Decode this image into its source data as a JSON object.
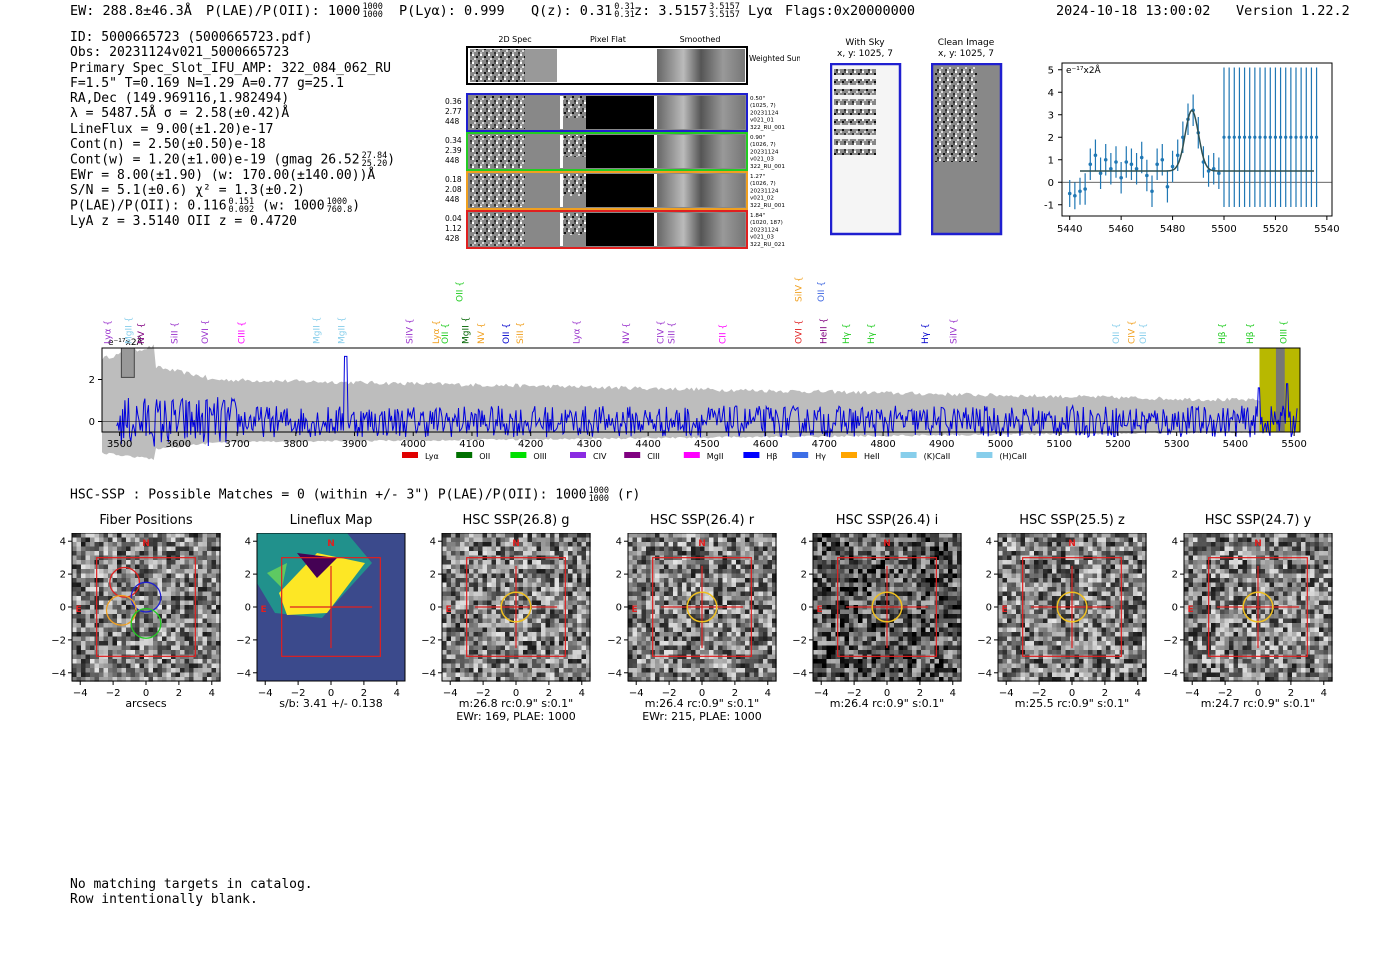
{
  "header": {
    "ew": "EW: 288.8±46.3Å",
    "plae_label": "P(LAE)/P(OII): 1000",
    "plae_hi": "1000",
    "plae_lo": "1000",
    "plya": "P(Lyα): 0.999",
    "qz_label": "Q(z): 0.31",
    "qz_hi": "0.31",
    "qz_lo": "0.31",
    "z_label": "z: 3.5157",
    "z_hi": "3.5157",
    "z_lo": "3.5157",
    "z_line": "Lyα",
    "flags": "Flags:0x20000000",
    "datetime": "2024-10-18 13:00:02",
    "version": "Version 1.22.2"
  },
  "info": {
    "id": "ID: 5000665723 (5000665723.pdf)",
    "obs": "Obs: 20231124v021_5000665723",
    "slot": "Primary Spec_Slot_IFU_AMP: 322_084_062_RU",
    "fit": "F=1.5\"  T=0.169  N=1.29  A=0.77  g=25.1",
    "radec": "RA,Dec (149.969116,1.982494)",
    "lambda": "λ = 5487.5Å   σ = 2.58(±0.42)Å",
    "lineflux": "LineFlux = 9.00(±1.20)e-17",
    "contn": "Cont(n) = 2.50(±0.50)e-18",
    "contw": "Cont(w) = 1.20(±1.00)e-19 (gmag 26.52",
    "contw_hi": "27.84",
    "contw_lo": "25.20",
    "contw_end": ")",
    "ewr": "EWr = 8.00(±1.90) (w: 170.00(±140.00))Å",
    "sn": "S/N = 5.1(±0.6)  χ² = 1.3(±0.2)",
    "plae": "P(LAE)/P(OII): 0.116",
    "plae_hi": "0.151",
    "plae_lo": "0.092",
    "plae_w": "(w: 1000",
    "plae_w_hi": "1000",
    "plae_w_lo": "760.8",
    "plae_end": ")",
    "lyaz": "LyA z = 3.5140   OII z = 0.4720"
  },
  "stamps": {
    "col_titles": [
      "2D Spec",
      "Pixel Flat",
      "Smoothed"
    ],
    "weighted": "Weighted Sum",
    "rows": [
      {
        "left": [
          "0.36",
          "2.77",
          "448"
        ],
        "right": [
          "0.50\"",
          "(1025, 7)",
          "20231124",
          "v021_01",
          "322_RU_001"
        ],
        "color": "#1f1fd0"
      },
      {
        "left": [
          "0.34",
          "2.39",
          "448"
        ],
        "right": [
          "0.90\"",
          "(1026, 7)",
          "20231124",
          "v021_03",
          "322_RU_001"
        ],
        "color": "#22cc22"
      },
      {
        "left": [
          "0.18",
          "2.08",
          "448"
        ],
        "right": [
          "1.27\"",
          "(1026, 7)",
          "20231124",
          "v021_02",
          "322_RU_001"
        ],
        "color": "#f0a020"
      },
      {
        "left": [
          "0.04",
          "1.12",
          "428"
        ],
        "right": [
          "1.84\"",
          "(1020, 187)",
          "20231124",
          "v021_03",
          "322_RU_021"
        ],
        "color": "#e02020"
      }
    ]
  },
  "sky": {
    "title": "With Sky",
    "sub": "x, y: 1025, 7"
  },
  "clean": {
    "title": "Clean Image",
    "sub": "x, y: 1025, 7"
  },
  "zoom_chart": {
    "unit": "e⁻¹⁷x2Å",
    "xticks": [
      5440,
      5460,
      5480,
      5500,
      5520,
      5540
    ],
    "yticks": [
      -1,
      0,
      1,
      2,
      3,
      4,
      5
    ]
  },
  "chart_data": [
    {
      "type": "scatter",
      "title": "",
      "xlabel": "",
      "ylabel": "e⁻¹⁷x2Å",
      "xlim": [
        5437,
        5542
      ],
      "ylim": [
        -1.5,
        5.3
      ],
      "x": [
        5440,
        5442,
        5444,
        5446,
        5448,
        5450,
        5452,
        5454,
        5456,
        5458,
        5460,
        5462,
        5464,
        5466,
        5468,
        5470,
        5472,
        5474,
        5476,
        5478,
        5480,
        5482,
        5484,
        5486,
        5488,
        5490,
        5492,
        5494,
        5496,
        5498
      ],
      "y": [
        -0.5,
        -0.6,
        -0.4,
        -0.3,
        0.8,
        1.2,
        0.4,
        1.0,
        0.6,
        0.9,
        0.2,
        0.9,
        0.8,
        0.6,
        1.1,
        0.3,
        -0.4,
        0.8,
        1.0,
        -0.2,
        0.7,
        1.2,
        2.0,
        2.8,
        3.2,
        2.2,
        0.9,
        0.5,
        0.6,
        0.4
      ],
      "yerr": [
        0.6,
        0.6,
        0.6,
        0.7,
        0.7,
        0.7,
        0.7,
        0.7,
        0.7,
        0.7,
        0.7,
        0.7,
        0.7,
        0.7,
        0.7,
        0.7,
        0.7,
        0.7,
        0.7,
        0.7,
        0.7,
        0.7,
        0.7,
        0.7,
        0.7,
        0.7,
        0.7,
        0.7,
        0.7,
        0.7
      ],
      "flat_x": [
        5500,
        5502,
        5504,
        5506,
        5508,
        5510,
        5512,
        5514,
        5516,
        5518,
        5520,
        5522,
        5524,
        5526,
        5528,
        5530,
        5532,
        5534,
        5536
      ],
      "flat_y": 2.0,
      "flat_err": 3.1,
      "model": {
        "center": 5487.5,
        "sigma": 2.58,
        "peak": 3.2,
        "baseline": 0.5,
        "xrange": [
          5444,
          5535
        ]
      }
    },
    {
      "type": "line",
      "title": "",
      "xlabel": "",
      "ylabel": "e⁻¹⁷x2Å",
      "xlim": [
        3470,
        5510
      ],
      "ylim": [
        -0.5,
        3.5
      ],
      "xticks": [
        3500,
        3600,
        3700,
        3800,
        3900,
        4000,
        4100,
        4200,
        4300,
        4400,
        4500,
        4600,
        4700,
        4800,
        4900,
        5000,
        5100,
        5200,
        5300,
        5400,
        5500
      ],
      "yticks": [
        0,
        2
      ],
      "series": [
        {
          "values_note": "noise-like spectrum",
          "color": "#0000dd"
        }
      ],
      "error_envelope_color": "#bdbdbd",
      "lines": [
        {
          "name": "Lyα",
          "x": 3480,
          "color": "#9932cc",
          "row": 0
        },
        {
          "name": "MgII",
          "x": 3518,
          "color": "#87ceeb",
          "row": 0
        },
        {
          "name": "NV",
          "x": 3540,
          "color": "#800080",
          "row": 0
        },
        {
          "name": "SiII",
          "x": 3600,
          "color": "#9932cc",
          "row": 0
        },
        {
          "name": "OVI",
          "x": 3655,
          "color": "#9932cc",
          "row": 0
        },
        {
          "name": "CIII",
          "x": 3720,
          "color": "#ff00ff",
          "row": 0
        },
        {
          "name": "MgII",
          "x": 3855,
          "color": "#87ceeb",
          "row": 0
        },
        {
          "name": "MgII",
          "x": 3900,
          "color": "#87ceeb",
          "row": 0
        },
        {
          "name": "SiIV",
          "x": 4022,
          "color": "#9932cc",
          "row": 0
        },
        {
          "name": "Lyα",
          "x": 4069,
          "color": "#f0a020",
          "row": 0
        },
        {
          "name": "OII",
          "x": 4086,
          "color": "#22cc22",
          "row": 0
        },
        {
          "name": "OII",
          "x": 4112,
          "color": "#22cc22",
          "row": 1
        },
        {
          "name": "MgII",
          "x": 4122,
          "color": "#006400",
          "row": 0
        },
        {
          "name": "NV",
          "x": 4150,
          "color": "#f0a020",
          "row": 0
        },
        {
          "name": "OII",
          "x": 4195,
          "color": "#0000cc",
          "row": 0
        },
        {
          "name": "SiII",
          "x": 4220,
          "color": "#f0a020",
          "row": 0
        },
        {
          "name": "Lyα",
          "x": 4322,
          "color": "#9932cc",
          "row": 0
        },
        {
          "name": "NV",
          "x": 4410,
          "color": "#9932cc",
          "row": 0
        },
        {
          "name": "CIV",
          "x": 4472,
          "color": "#9932cc",
          "row": 0
        },
        {
          "name": "SiII",
          "x": 4492,
          "color": "#9932cc",
          "row": 0
        },
        {
          "name": "CII",
          "x": 4584,
          "color": "#ff00ff",
          "row": 0
        },
        {
          "name": "SiIV",
          "x": 4720,
          "color": "#f0a020",
          "row": 1
        },
        {
          "name": "OVI",
          "x": 4720,
          "color": "#e02020",
          "row": 0
        },
        {
          "name": "OII",
          "x": 4760,
          "color": "#4169e1",
          "row": 1
        },
        {
          "name": "HeII",
          "x": 4765,
          "color": "#800080",
          "row": 0
        },
        {
          "name": "Hγ",
          "x": 4805,
          "color": "#22cc22",
          "row": 0
        },
        {
          "name": "Hγ",
          "x": 4850,
          "color": "#22cc22",
          "row": 0
        },
        {
          "name": "Hγ",
          "x": 4947,
          "color": "#0000cc",
          "row": 0
        },
        {
          "name": "SiIV",
          "x": 4998,
          "color": "#9932cc",
          "row": 0
        },
        {
          "name": "OII",
          "x": 5290,
          "color": "#87ceeb",
          "row": 0
        },
        {
          "name": "CIV",
          "x": 5318,
          "color": "#f0a020",
          "row": 0
        },
        {
          "name": "OII",
          "x": 5338,
          "color": "#87ceeb",
          "row": 0
        },
        {
          "name": "Hβ",
          "x": 5480,
          "color": "#22cc22",
          "row": 0
        },
        {
          "name": "Hβ",
          "x": 5530,
          "color": "#22cc22",
          "row": 0
        },
        {
          "name": "OIII",
          "x": 5590,
          "color": "#22cc22",
          "row": 0
        }
      ]
    }
  ],
  "legend": [
    {
      "name": "Lyα",
      "color": "#e00000"
    },
    {
      "name": "OII",
      "color": "#007000"
    },
    {
      "name": "OIII",
      "color": "#00e000"
    },
    {
      "name": "CIV",
      "color": "#8a2be2"
    },
    {
      "name": "CIII",
      "color": "#800080"
    },
    {
      "name": "MgII",
      "color": "#ff00ff"
    },
    {
      "name": "Hβ",
      "color": "#0000ff"
    },
    {
      "name": "Hγ",
      "color": "#3c6ee6"
    },
    {
      "name": "HeII",
      "color": "#ffa500"
    },
    {
      "name": "(K)CaII",
      "color": "#87ceeb"
    },
    {
      "name": "(H)CaII",
      "color": "#87ceeb"
    }
  ],
  "hsc": {
    "line": "HSC-SSP : Possible Matches = 0 (within +/- 3\")  P(LAE)/P(OII): 1000",
    "frac_hi": "1000",
    "frac_lo": "1000",
    "tail": "(r)"
  },
  "cutouts": [
    {
      "title": "Fiber Positions",
      "cap1": "arcsecs",
      "cap2": ""
    },
    {
      "title": "Lineflux Map",
      "cap1": "s/b: 3.41 +/- 0.138",
      "cap2": ""
    },
    {
      "title": "HSC SSP(26.8) g",
      "cap1": "m:26.8 rc:0.9\"  s:0.1\"",
      "cap2": "EWr: 169, PLAE: 1000"
    },
    {
      "title": "HSC SSP(26.4) r",
      "cap1": "m:26.4 rc:0.9\"  s:0.1\"",
      "cap2": "EWr: 215, PLAE: 1000"
    },
    {
      "title": "HSC SSP(26.4) i",
      "cap1": "m:26.4 rc:0.9\"  s:0.1\"",
      "cap2": ""
    },
    {
      "title": "HSC SSP(25.5) z",
      "cap1": "m:25.5 rc:0.9\"  s:0.1\"",
      "cap2": ""
    },
    {
      "title": "HSC SSP(24.7) y",
      "cap1": "m:24.7 rc:0.9\"  s:0.1\"",
      "cap2": ""
    }
  ],
  "cutout_ticks": {
    "x": [
      -4,
      -2,
      0,
      2,
      4
    ],
    "y": [
      4,
      2,
      0,
      -2,
      -4
    ],
    "north": "N",
    "east": "E"
  },
  "bottom_text": {
    "line1": "No matching targets in catalog.",
    "line2": "Row intentionally blank."
  }
}
